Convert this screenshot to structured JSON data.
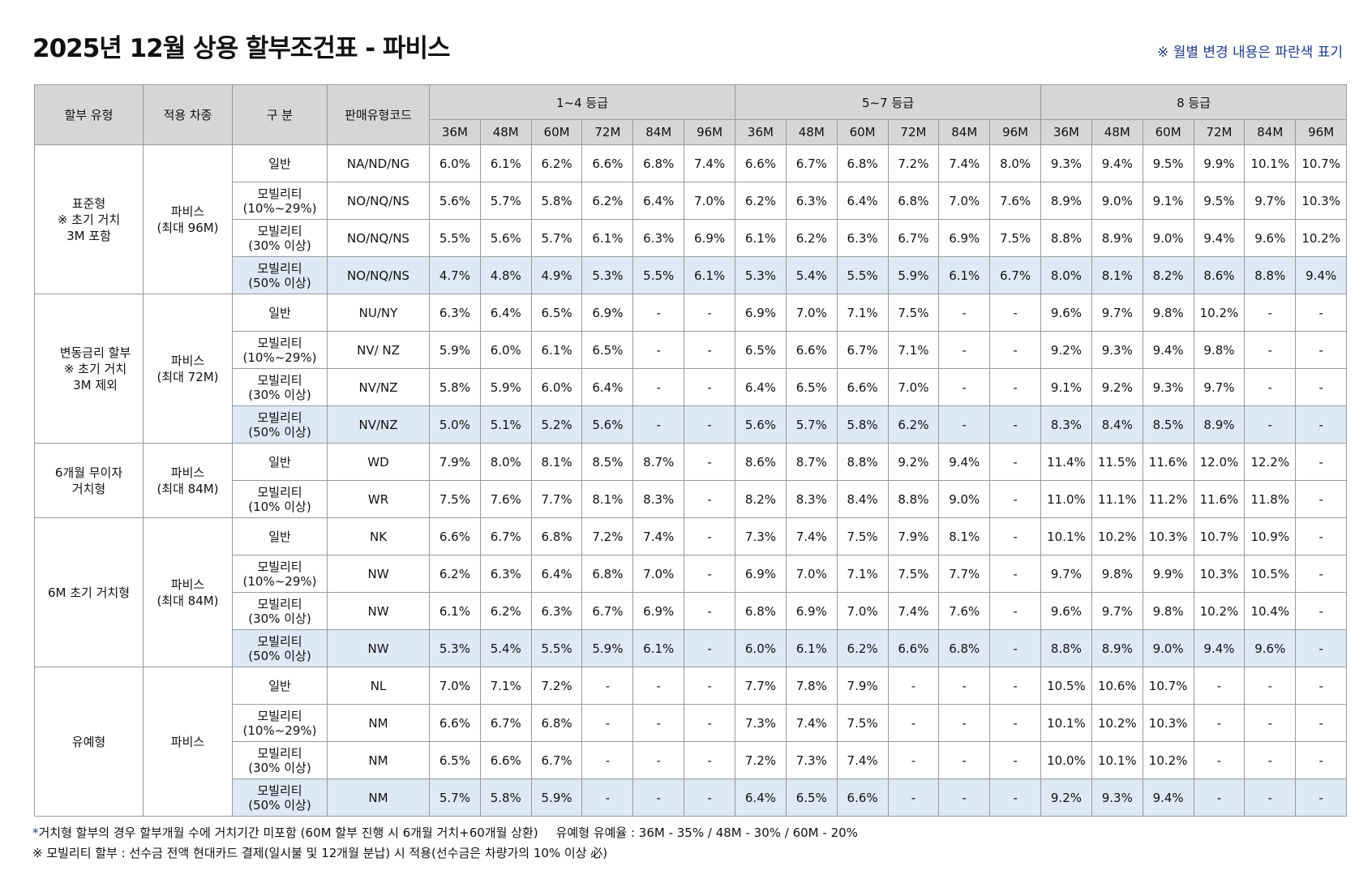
{
  "title": "2025년 12월 상용 할부조건표 - 파비스",
  "notice": "※ 월별 변경 내용은 파란색 표기",
  "header": {
    "type": "할부 유형",
    "model": "적용 차종",
    "category": "구 분",
    "code": "판매유형코드",
    "groups": [
      "1~4 등급",
      "5~7 등급",
      "8 등급"
    ],
    "terms": [
      "36M",
      "48M",
      "60M",
      "72M",
      "84M",
      "96M"
    ]
  },
  "sections": [
    {
      "type_lines": [
        "표준형",
        "※ 초기 거치",
        "3M 포함"
      ],
      "model_lines": [
        "파비스",
        "(최대 96M)"
      ],
      "rows": [
        {
          "cat": [
            "일반"
          ],
          "code": "NA/ND/NG",
          "values": [
            "6.0%",
            "6.1%",
            "6.2%",
            "6.6%",
            "6.8%",
            "7.4%",
            "6.6%",
            "6.7%",
            "6.8%",
            "7.2%",
            "7.4%",
            "8.0%",
            "9.3%",
            "9.4%",
            "9.5%",
            "9.9%",
            "10.1%",
            "10.7%"
          ]
        },
        {
          "cat": [
            "모빌리티",
            "(10%~29%)"
          ],
          "code": "NO/NQ/NS",
          "values": [
            "5.6%",
            "5.7%",
            "5.8%",
            "6.2%",
            "6.4%",
            "7.0%",
            "6.2%",
            "6.3%",
            "6.4%",
            "6.8%",
            "7.0%",
            "7.6%",
            "8.9%",
            "9.0%",
            "9.1%",
            "9.5%",
            "9.7%",
            "10.3%"
          ]
        },
        {
          "cat": [
            "모빌리티",
            "(30% 이상)"
          ],
          "code": "NO/NQ/NS",
          "values": [
            "5.5%",
            "5.6%",
            "5.7%",
            "6.1%",
            "6.3%",
            "6.9%",
            "6.1%",
            "6.2%",
            "6.3%",
            "6.7%",
            "6.9%",
            "7.5%",
            "8.8%",
            "8.9%",
            "9.0%",
            "9.4%",
            "9.6%",
            "10.2%"
          ]
        },
        {
          "cat": [
            "모빌리티",
            "(50% 이상)"
          ],
          "code": "NO/NQ/NS",
          "highlight": true,
          "values": [
            "4.7%",
            "4.8%",
            "4.9%",
            "5.3%",
            "5.5%",
            "6.1%",
            "5.3%",
            "5.4%",
            "5.5%",
            "5.9%",
            "6.1%",
            "6.7%",
            "8.0%",
            "8.1%",
            "8.2%",
            "8.6%",
            "8.8%",
            "9.4%"
          ]
        }
      ]
    },
    {
      "type_lines": [
        "변동금리 할부",
        "※ 초기 거치",
        "3M 제외"
      ],
      "model_lines": [
        "파비스",
        "(최대 72M)"
      ],
      "variant": true,
      "rows": [
        {
          "cat": [
            "일반"
          ],
          "code": "NU/NY",
          "values": [
            "6.3%",
            "6.4%",
            "6.5%",
            "6.9%",
            "-",
            "-",
            "6.9%",
            "7.0%",
            "7.1%",
            "7.5%",
            "-",
            "-",
            "9.6%",
            "9.7%",
            "9.8%",
            "10.2%",
            "-",
            "-"
          ]
        },
        {
          "cat": [
            "모빌리티",
            "(10%~29%)"
          ],
          "code": "NV/ NZ",
          "values": [
            "5.9%",
            "6.0%",
            "6.1%",
            "6.5%",
            "-",
            "-",
            "6.5%",
            "6.6%",
            "6.7%",
            "7.1%",
            "-",
            "-",
            "9.2%",
            "9.3%",
            "9.4%",
            "9.8%",
            "-",
            "-"
          ]
        },
        {
          "cat": [
            "모빌리티",
            "(30% 이상)"
          ],
          "code": "NV/NZ",
          "values": [
            "5.8%",
            "5.9%",
            "6.0%",
            "6.4%",
            "-",
            "-",
            "6.4%",
            "6.5%",
            "6.6%",
            "7.0%",
            "-",
            "-",
            "9.1%",
            "9.2%",
            "9.3%",
            "9.7%",
            "-",
            "-"
          ]
        },
        {
          "cat": [
            "모빌리티",
            "(50% 이상)"
          ],
          "code": "NV/NZ",
          "highlight": true,
          "values": [
            "5.0%",
            "5.1%",
            "5.2%",
            "5.6%",
            "-",
            "-",
            "5.6%",
            "5.7%",
            "5.8%",
            "6.2%",
            "-",
            "-",
            "8.3%",
            "8.4%",
            "8.5%",
            "8.9%",
            "-",
            "-"
          ]
        }
      ]
    },
    {
      "type_lines": [
        "6개월 무이자",
        "거치형"
      ],
      "model_lines": [
        "파비스",
        "(최대 84M)"
      ],
      "rows": [
        {
          "cat": [
            "일반"
          ],
          "code": "WD",
          "values": [
            "7.9%",
            "8.0%",
            "8.1%",
            "8.5%",
            "8.7%",
            "-",
            "8.6%",
            "8.7%",
            "8.8%",
            "9.2%",
            "9.4%",
            "-",
            "11.4%",
            "11.5%",
            "11.6%",
            "12.0%",
            "12.2%",
            "-"
          ]
        },
        {
          "cat": [
            "모빌리티",
            "(10% 이상)"
          ],
          "code": "WR",
          "values": [
            "7.5%",
            "7.6%",
            "7.7%",
            "8.1%",
            "8.3%",
            "-",
            "8.2%",
            "8.3%",
            "8.4%",
            "8.8%",
            "9.0%",
            "-",
            "11.0%",
            "11.1%",
            "11.2%",
            "11.6%",
            "11.8%",
            "-"
          ]
        }
      ]
    },
    {
      "type_lines": [
        "6M 초기 거치형"
      ],
      "model_lines": [
        "파비스",
        "(최대 84M)"
      ],
      "rows": [
        {
          "cat": [
            "일반"
          ],
          "code": "NK",
          "values": [
            "6.6%",
            "6.7%",
            "6.8%",
            "7.2%",
            "7.4%",
            "-",
            "7.3%",
            "7.4%",
            "7.5%",
            "7.9%",
            "8.1%",
            "-",
            "10.1%",
            "10.2%",
            "10.3%",
            "10.7%",
            "10.9%",
            "-"
          ]
        },
        {
          "cat": [
            "모빌리티",
            "(10%~29%)"
          ],
          "code": "NW",
          "values": [
            "6.2%",
            "6.3%",
            "6.4%",
            "6.8%",
            "7.0%",
            "-",
            "6.9%",
            "7.0%",
            "7.1%",
            "7.5%",
            "7.7%",
            "-",
            "9.7%",
            "9.8%",
            "9.9%",
            "10.3%",
            "10.5%",
            "-"
          ]
        },
        {
          "cat": [
            "모빌리티",
            "(30% 이상)"
          ],
          "code": "NW",
          "values": [
            "6.1%",
            "6.2%",
            "6.3%",
            "6.7%",
            "6.9%",
            "-",
            "6.8%",
            "6.9%",
            "7.0%",
            "7.4%",
            "7.6%",
            "-",
            "9.6%",
            "9.7%",
            "9.8%",
            "10.2%",
            "10.4%",
            "-"
          ]
        },
        {
          "cat": [
            "모빌리티",
            "(50% 이상)"
          ],
          "code": "NW",
          "highlight": true,
          "values": [
            "5.3%",
            "5.4%",
            "5.5%",
            "5.9%",
            "6.1%",
            "-",
            "6.0%",
            "6.1%",
            "6.2%",
            "6.6%",
            "6.8%",
            "-",
            "8.8%",
            "8.9%",
            "9.0%",
            "9.4%",
            "9.6%",
            "-"
          ]
        }
      ]
    },
    {
      "type_lines": [
        "유예형"
      ],
      "model_lines": [
        "파비스"
      ],
      "rows": [
        {
          "cat": [
            "일반"
          ],
          "code": "NL",
          "values": [
            "7.0%",
            "7.1%",
            "7.2%",
            "-",
            "-",
            "-",
            "7.7%",
            "7.8%",
            "7.9%",
            "-",
            "-",
            "-",
            "10.5%",
            "10.6%",
            "10.7%",
            "-",
            "-",
            "-"
          ]
        },
        {
          "cat": [
            "모빌리티",
            "(10%~29%)"
          ],
          "code": "NM",
          "values": [
            "6.6%",
            "6.7%",
            "6.8%",
            "-",
            "-",
            "-",
            "7.3%",
            "7.4%",
            "7.5%",
            "-",
            "-",
            "-",
            "10.1%",
            "10.2%",
            "10.3%",
            "-",
            "-",
            "-"
          ]
        },
        {
          "cat": [
            "모빌리티",
            "(30% 이상)"
          ],
          "code": "NM",
          "values": [
            "6.5%",
            "6.6%",
            "6.7%",
            "-",
            "-",
            "-",
            "7.2%",
            "7.3%",
            "7.4%",
            "-",
            "-",
            "-",
            "10.0%",
            "10.1%",
            "10.2%",
            "-",
            "-",
            "-"
          ]
        },
        {
          "cat": [
            "모빌리티",
            "(50% 이상)"
          ],
          "code": "NM",
          "highlight": true,
          "values": [
            "5.7%",
            "5.8%",
            "5.9%",
            "-",
            "-",
            "-",
            "6.4%",
            "6.5%",
            "6.6%",
            "-",
            "-",
            "-",
            "9.2%",
            "9.3%",
            "9.4%",
            "-",
            "-",
            "-"
          ]
        }
      ]
    }
  ],
  "footnotes": {
    "line1_mark": "*",
    "line1_text": "거치형 할부의 경우 할부개월 수에 거치기간 미포함 (60M 할부 진행 시 6개월 거치+60개월 상환)",
    "line1_extra": "유예형 유예율 : 36M - 35% / 48M - 30% / 60M - 20%",
    "line2_text": "※ 모빌리티 할부 : 선수금 전액 현대카드 결제(일시불 및 12개월 분납) 시 적용(선수금은 차량가의 10% 이상 必)"
  },
  "colors": {
    "header_bg": "#d6d6d6",
    "highlight_bg": "#dde9f5",
    "notice_blue": "#1f3c88",
    "border": "#9a9a9a"
  }
}
